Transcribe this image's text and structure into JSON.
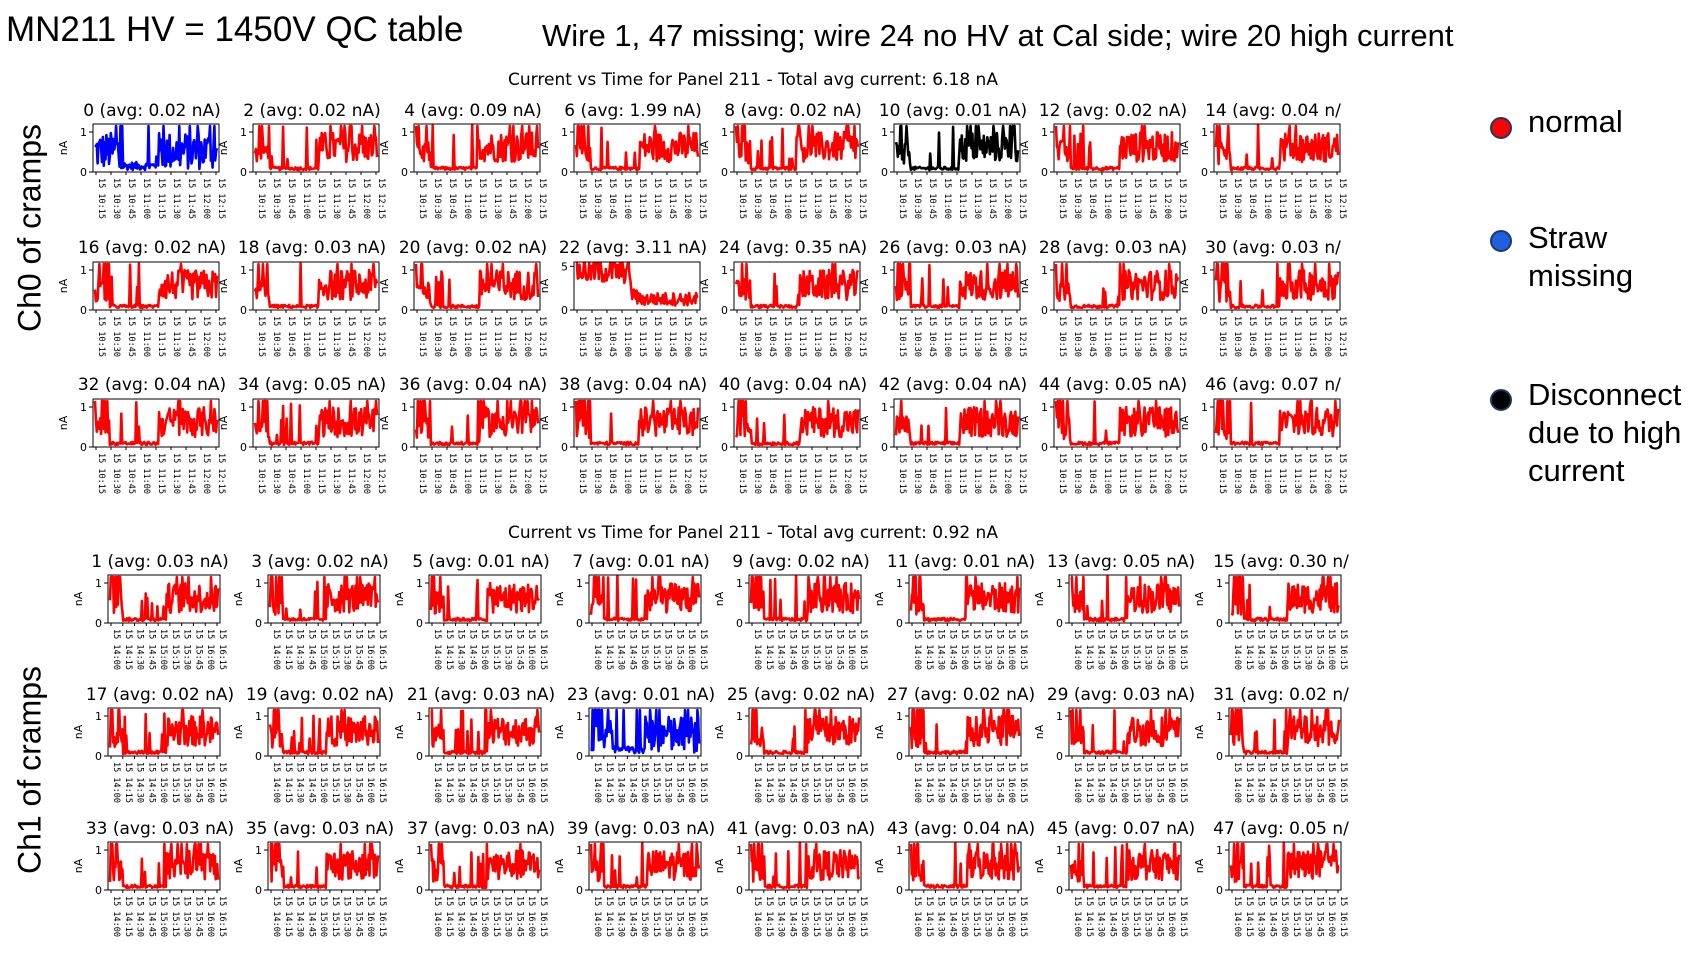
{
  "header": {
    "title": "MN211 HV = 1450V QC table",
    "subtitle": "Wire 1, 47 missing; wire 24 no HV at Cal side; wire 20 high current"
  },
  "row_labels": [
    "Ch0 of cramps",
    "Ch1 of cramps"
  ],
  "legend": [
    {
      "label": "normal",
      "color": "#ff0000"
    },
    {
      "label": "Straw missing",
      "color": "#1f5fe0"
    },
    {
      "label": "Disconnect due to high current",
      "color": "#000000"
    }
  ],
  "chart_data": [
    {
      "type": "line",
      "title": "Current vs Time for Panel 211 - Total avg current: 6.18 nA",
      "ylabel": "nA",
      "x_ticks": [
        "15 10:15",
        "15 10:30",
        "15 10:45",
        "15 11:00",
        "15 11:15",
        "15 11:30",
        "15 11:45",
        "15 12:00",
        "15 12:15"
      ],
      "panels": [
        {
          "title": "0 (avg: 0.02 nA)",
          "color": "#0000ff",
          "y_ticks": [
            "1",
            "0"
          ],
          "ylim": [
            0,
            1.2
          ]
        },
        {
          "title": "2 (avg: 0.02 nA)",
          "color": "#ff0000",
          "y_ticks": [
            "1",
            "0"
          ],
          "ylim": [
            0,
            1.2
          ]
        },
        {
          "title": "4 (avg: 0.09 nA)",
          "color": "#ff0000",
          "y_ticks": [
            "1",
            "0"
          ],
          "ylim": [
            0,
            1.2
          ]
        },
        {
          "title": "6 (avg: 1.99 nA)",
          "color": "#ff0000",
          "y_ticks": [
            "1",
            "0"
          ],
          "ylim": [
            0,
            1.2
          ]
        },
        {
          "title": "8 (avg: 0.02 nA)",
          "color": "#ff0000",
          "y_ticks": [
            "1",
            "0"
          ],
          "ylim": [
            0,
            1.2
          ]
        },
        {
          "title": "10 (avg: 0.01 nA)",
          "color": "#000000",
          "y_ticks": [
            "1",
            "0"
          ],
          "ylim": [
            0,
            1.2
          ]
        },
        {
          "title": "12 (avg: 0.02 nA)",
          "color": "#ff0000",
          "y_ticks": [
            "1",
            "0"
          ],
          "ylim": [
            0,
            1.2
          ]
        },
        {
          "title": "14 (avg: 0.04 n/",
          "color": "#ff0000",
          "y_ticks": [
            "1",
            "0"
          ],
          "ylim": [
            0,
            1.2
          ]
        },
        {
          "title": "16 (avg: 0.02 nA)",
          "color": "#ff0000",
          "y_ticks": [
            "1",
            "0"
          ],
          "ylim": [
            0,
            1.2
          ]
        },
        {
          "title": "18 (avg: 0.03 nA)",
          "color": "#ff0000",
          "y_ticks": [
            "1",
            "0"
          ],
          "ylim": [
            0,
            1.2
          ]
        },
        {
          "title": "20 (avg: 0.02 nA)",
          "color": "#ff0000",
          "y_ticks": [
            "1",
            "0"
          ],
          "ylim": [
            0,
            1.2
          ]
        },
        {
          "title": "22 (avg: 3.11 nA)",
          "color": "#ff0000",
          "y_ticks": [
            "5",
            "0"
          ],
          "ylim": [
            0,
            5.5
          ]
        },
        {
          "title": "24 (avg: 0.35 nA)",
          "color": "#ff0000",
          "y_ticks": [
            "1",
            "0"
          ],
          "ylim": [
            0,
            1.2
          ]
        },
        {
          "title": "26 (avg: 0.03 nA)",
          "color": "#ff0000",
          "y_ticks": [
            "1",
            "0"
          ],
          "ylim": [
            0,
            1.2
          ]
        },
        {
          "title": "28 (avg: 0.03 nA)",
          "color": "#ff0000",
          "y_ticks": [
            "1",
            "0"
          ],
          "ylim": [
            0,
            1.2
          ]
        },
        {
          "title": "30 (avg: 0.03 n/",
          "color": "#ff0000",
          "y_ticks": [
            "1",
            "0"
          ],
          "ylim": [
            0,
            1.2
          ]
        },
        {
          "title": "32 (avg: 0.04 nA)",
          "color": "#ff0000",
          "y_ticks": [
            "1",
            "0"
          ],
          "ylim": [
            0,
            1.2
          ]
        },
        {
          "title": "34 (avg: 0.05 nA)",
          "color": "#ff0000",
          "y_ticks": [
            "1",
            "0"
          ],
          "ylim": [
            0,
            1.2
          ]
        },
        {
          "title": "36 (avg: 0.04 nA)",
          "color": "#ff0000",
          "y_ticks": [
            "1",
            "0"
          ],
          "ylim": [
            0,
            1.2
          ]
        },
        {
          "title": "38 (avg: 0.04 nA)",
          "color": "#ff0000",
          "y_ticks": [
            "1",
            "0"
          ],
          "ylim": [
            0,
            1.2
          ]
        },
        {
          "title": "40 (avg: 0.04 nA)",
          "color": "#ff0000",
          "y_ticks": [
            "1",
            "0"
          ],
          "ylim": [
            0,
            1.2
          ]
        },
        {
          "title": "42 (avg: 0.04 nA)",
          "color": "#ff0000",
          "y_ticks": [
            "1",
            "0"
          ],
          "ylim": [
            0,
            1.2
          ]
        },
        {
          "title": "44 (avg: 0.05 nA)",
          "color": "#ff0000",
          "y_ticks": [
            "1",
            "0"
          ],
          "ylim": [
            0,
            1.2
          ]
        },
        {
          "title": "46 (avg: 0.07 n/",
          "color": "#ff0000",
          "y_ticks": [
            "1",
            "0"
          ],
          "ylim": [
            0,
            1.2
          ]
        }
      ]
    },
    {
      "type": "line",
      "title": "Current vs Time for Panel 211 - Total avg current: 0.92 nA",
      "ylabel": "nA",
      "x_ticks": [
        "15 14:00",
        "15 14:15",
        "15 14:30",
        "15 14:45",
        "15 15:00",
        "15 15:15",
        "15 15:30",
        "15 15:45",
        "15 16:00",
        "15 16:15"
      ],
      "panels": [
        {
          "title": "1 (avg: 0.03 nA)",
          "color": "#ff0000",
          "y_ticks": [
            "1",
            "0"
          ],
          "ylim": [
            0,
            1.2
          ]
        },
        {
          "title": "3 (avg: 0.02 nA)",
          "color": "#ff0000",
          "y_ticks": [
            "1",
            "0"
          ],
          "ylim": [
            0,
            1.2
          ]
        },
        {
          "title": "5 (avg: 0.01 nA)",
          "color": "#ff0000",
          "y_ticks": [
            "1",
            "0"
          ],
          "ylim": [
            0,
            1.2
          ]
        },
        {
          "title": "7 (avg: 0.01 nA)",
          "color": "#ff0000",
          "y_ticks": [
            "1",
            "0"
          ],
          "ylim": [
            0,
            1.2
          ]
        },
        {
          "title": "9 (avg: 0.02 nA)",
          "color": "#ff0000",
          "y_ticks": [
            "1",
            "0"
          ],
          "ylim": [
            0,
            1.2
          ]
        },
        {
          "title": "11 (avg: 0.01 nA)",
          "color": "#ff0000",
          "y_ticks": [
            "1",
            "0"
          ],
          "ylim": [
            0,
            1.2
          ]
        },
        {
          "title": "13 (avg: 0.05 nA)",
          "color": "#ff0000",
          "y_ticks": [
            "1",
            "0"
          ],
          "ylim": [
            0,
            1.2
          ]
        },
        {
          "title": "15 (avg: 0.30 n/",
          "color": "#ff0000",
          "y_ticks": [
            "1",
            "0"
          ],
          "ylim": [
            0,
            1.2
          ]
        },
        {
          "title": "17 (avg: 0.02 nA)",
          "color": "#ff0000",
          "y_ticks": [
            "1",
            "0"
          ],
          "ylim": [
            0,
            1.2
          ]
        },
        {
          "title": "19 (avg: 0.02 nA)",
          "color": "#ff0000",
          "y_ticks": [
            "1",
            "0"
          ],
          "ylim": [
            0,
            1.2
          ]
        },
        {
          "title": "21 (avg: 0.03 nA)",
          "color": "#ff0000",
          "y_ticks": [
            "1",
            "0"
          ],
          "ylim": [
            0,
            1.2
          ]
        },
        {
          "title": "23 (avg: 0.01 nA)",
          "color": "#0000ff",
          "y_ticks": [
            "1",
            "0"
          ],
          "ylim": [
            0,
            1.2
          ]
        },
        {
          "title": "25 (avg: 0.02 nA)",
          "color": "#ff0000",
          "y_ticks": [
            "1",
            "0"
          ],
          "ylim": [
            0,
            1.2
          ]
        },
        {
          "title": "27 (avg: 0.02 nA)",
          "color": "#ff0000",
          "y_ticks": [
            "1",
            "0"
          ],
          "ylim": [
            0,
            1.2
          ]
        },
        {
          "title": "29 (avg: 0.03 nA)",
          "color": "#ff0000",
          "y_ticks": [
            "1",
            "0"
          ],
          "ylim": [
            0,
            1.2
          ]
        },
        {
          "title": "31 (avg: 0.02 n/",
          "color": "#ff0000",
          "y_ticks": [
            "1",
            "0"
          ],
          "ylim": [
            0,
            1.2
          ]
        },
        {
          "title": "33 (avg: 0.03 nA)",
          "color": "#ff0000",
          "y_ticks": [
            "1",
            "0"
          ],
          "ylim": [
            0,
            1.2
          ]
        },
        {
          "title": "35 (avg: 0.03 nA)",
          "color": "#ff0000",
          "y_ticks": [
            "1",
            "0"
          ],
          "ylim": [
            0,
            1.2
          ]
        },
        {
          "title": "37 (avg: 0.03 nA)",
          "color": "#ff0000",
          "y_ticks": [
            "1",
            "0"
          ],
          "ylim": [
            0,
            1.2
          ]
        },
        {
          "title": "39 (avg: 0.03 nA)",
          "color": "#ff0000",
          "y_ticks": [
            "1",
            "0"
          ],
          "ylim": [
            0,
            1.2
          ]
        },
        {
          "title": "41 (avg: 0.03 nA)",
          "color": "#ff0000",
          "y_ticks": [
            "1",
            "0"
          ],
          "ylim": [
            0,
            1.2
          ]
        },
        {
          "title": "43 (avg: 0.04 nA)",
          "color": "#ff0000",
          "y_ticks": [
            "1",
            "0"
          ],
          "ylim": [
            0,
            1.2
          ]
        },
        {
          "title": "45 (avg: 0.07 nA)",
          "color": "#ff0000",
          "y_ticks": [
            "1",
            "0"
          ],
          "ylim": [
            0,
            1.2
          ]
        },
        {
          "title": "47 (avg: 0.05 n/",
          "color": "#ff0000",
          "y_ticks": [
            "1",
            "0"
          ],
          "ylim": [
            0,
            1.2
          ]
        }
      ]
    }
  ]
}
